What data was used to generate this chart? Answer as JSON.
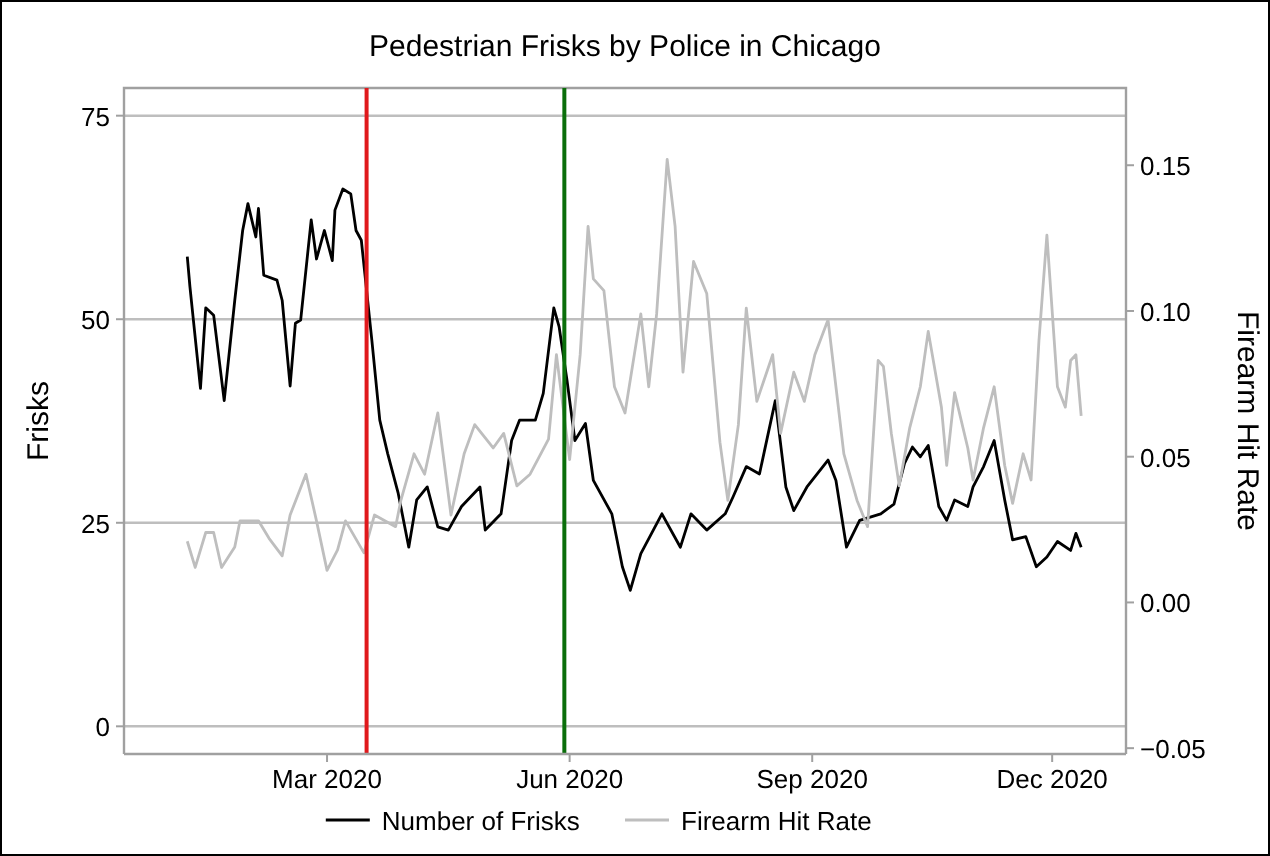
{
  "chart_data": {
    "type": "line",
    "title": "Pedestrian Frisks by Police in Chicago",
    "ylabel": "Frisks",
    "y2label": "Firearm Hit Rate",
    "xlim": [
      "2019-12-15",
      "2020-12-29"
    ],
    "xticks": [
      {
        "value": "2020-03-01",
        "label": "Mar 2020"
      },
      {
        "value": "2020-06-01",
        "label": "Jun 2020"
      },
      {
        "value": "2020-09-01",
        "label": "Sep 2020"
      },
      {
        "value": "2020-12-01",
        "label": "Dec 2020"
      }
    ],
    "ylim": [
      -3.4,
      78.4
    ],
    "yticks": [
      0,
      25,
      50,
      75
    ],
    "y2lim": [
      -0.052,
      0.1765
    ],
    "y2ticks": [
      {
        "value": -0.05,
        "label": "−0.05"
      },
      {
        "value": 0,
        "label": "0.00"
      },
      {
        "value": 0.05,
        "label": "0.05"
      },
      {
        "value": 0.1,
        "label": "0.10"
      },
      {
        "value": 0.15,
        "label": "0.15"
      }
    ],
    "grid": "y",
    "legend": "bottom",
    "marker": "none",
    "line_style": "solid",
    "ref_lines": [
      {
        "axis": "x",
        "value": "2020-03-16",
        "label": null,
        "color": "#e0191c"
      },
      {
        "axis": "x",
        "value": "2020-05-30",
        "label": null,
        "color": "#0a6e0a"
      }
    ],
    "series": [
      {
        "name": "Number of Frisks",
        "color": "#000000",
        "x": [
          "2020-01-08",
          "2020-01-09",
          "2020-01-13",
          "2020-01-15",
          "2020-01-18",
          "2020-01-22",
          "2020-01-26",
          "2020-01-29",
          "2020-01-31",
          "2020-02-03",
          "2020-02-04",
          "2020-02-06",
          "2020-02-11",
          "2020-02-13",
          "2020-02-16",
          "2020-02-18",
          "2020-02-20",
          "2020-02-24",
          "2020-02-26",
          "2020-02-29",
          "2020-03-03",
          "2020-03-04",
          "2020-03-07",
          "2020-03-10",
          "2020-03-12",
          "2020-03-14",
          "2020-03-18",
          "2020-03-21",
          "2020-03-24",
          "2020-03-28",
          "2020-04-01",
          "2020-04-04",
          "2020-04-08",
          "2020-04-12",
          "2020-04-16",
          "2020-04-21",
          "2020-04-28",
          "2020-04-30",
          "2020-05-06",
          "2020-05-10",
          "2020-05-13",
          "2020-05-19",
          "2020-05-22",
          "2020-05-26",
          "2020-05-28",
          "2020-05-31",
          "2020-06-03",
          "2020-06-07",
          "2020-06-10",
          "2020-06-17",
          "2020-06-21",
          "2020-06-24",
          "2020-06-28",
          "2020-07-06",
          "2020-07-13",
          "2020-07-17",
          "2020-07-23",
          "2020-07-30",
          "2020-08-02",
          "2020-08-07",
          "2020-08-12",
          "2020-08-18",
          "2020-08-22",
          "2020-08-25",
          "2020-08-30",
          "2020-09-07",
          "2020-09-10",
          "2020-09-14",
          "2020-09-19",
          "2020-09-27",
          "2020-10-02",
          "2020-10-06",
          "2020-10-09",
          "2020-10-12",
          "2020-10-15",
          "2020-10-19",
          "2020-10-22",
          "2020-10-25",
          "2020-10-30",
          "2020-11-01",
          "2020-11-05",
          "2020-11-09",
          "2020-11-13",
          "2020-11-16",
          "2020-11-21",
          "2020-11-25",
          "2020-11-29",
          "2020-12-03",
          "2020-12-08",
          "2020-12-10",
          "2020-12-12"
        ],
        "values": [
          57.7,
          54,
          41.5,
          51.4,
          50.5,
          40,
          52.3,
          60.9,
          64.2,
          60.1,
          63.6,
          55.4,
          54.8,
          52.3,
          41.8,
          49.5,
          49.9,
          62.2,
          57.4,
          60.9,
          57.2,
          63.4,
          66,
          65.4,
          60.9,
          59.7,
          47.4,
          37.6,
          33.5,
          28.6,
          22,
          27.8,
          29.4,
          24.5,
          24.1,
          27,
          29.4,
          24.1,
          26.1,
          35.1,
          37.6,
          37.6,
          40.9,
          51.4,
          49.1,
          42.5,
          35.1,
          37.2,
          30.2,
          26.1,
          19.6,
          16.7,
          21.2,
          26.1,
          22,
          26.1,
          24.1,
          26.1,
          28.2,
          31.9,
          31,
          40,
          29.4,
          26.5,
          29.4,
          32.7,
          30.2,
          22,
          25.3,
          26.1,
          27.3,
          32.3,
          34.3,
          33.1,
          34.5,
          27,
          25.3,
          27.8,
          27,
          29.4,
          31.9,
          35.1,
          27.8,
          22.9,
          23.3,
          19.6,
          20.8,
          22.7,
          21.6,
          23.7,
          22
        ]
      },
      {
        "name": "Firearm Hit Rate",
        "color": "#bebebe",
        "axis": "y2",
        "x": [
          "2020-01-08",
          "2020-01-11",
          "2020-01-15",
          "2020-01-18",
          "2020-01-21",
          "2020-01-26",
          "2020-01-28",
          "2020-02-04",
          "2020-02-08",
          "2020-02-13",
          "2020-02-16",
          "2020-02-22",
          "2020-02-26",
          "2020-03-01",
          "2020-03-05",
          "2020-03-08",
          "2020-03-15",
          "2020-03-19",
          "2020-03-27",
          "2020-03-29",
          "2020-04-03",
          "2020-04-07",
          "2020-04-12",
          "2020-04-17",
          "2020-04-22",
          "2020-04-26",
          "2020-05-03",
          "2020-05-07",
          "2020-05-12",
          "2020-05-17",
          "2020-05-24",
          "2020-05-27",
          "2020-06-01",
          "2020-06-05",
          "2020-06-08",
          "2020-06-10",
          "2020-06-14",
          "2020-06-18",
          "2020-06-22",
          "2020-06-28",
          "2020-07-01",
          "2020-07-04",
          "2020-07-08",
          "2020-07-11",
          "2020-07-14",
          "2020-07-18",
          "2020-07-23",
          "2020-07-28",
          "2020-07-31",
          "2020-08-04",
          "2020-08-07",
          "2020-08-11",
          "2020-08-17",
          "2020-08-20",
          "2020-08-25",
          "2020-08-29",
          "2020-09-02",
          "2020-09-07",
          "2020-09-13",
          "2020-09-18",
          "2020-09-22",
          "2020-09-26",
          "2020-09-28",
          "2020-10-01",
          "2020-10-04",
          "2020-10-08",
          "2020-10-12",
          "2020-10-15",
          "2020-10-20",
          "2020-10-22",
          "2020-10-25",
          "2020-10-30",
          "2020-11-01",
          "2020-11-05",
          "2020-11-09",
          "2020-11-13",
          "2020-11-16",
          "2020-11-20",
          "2020-11-23",
          "2020-11-26",
          "2020-11-29",
          "2020-12-03",
          "2020-12-06",
          "2020-12-08",
          "2020-12-10",
          "2020-12-12"
        ],
        "values": [
          0.021,
          0.012,
          0.024,
          0.024,
          0.012,
          0.019,
          0.028,
          0.028,
          0.022,
          0.016,
          0.03,
          0.044,
          0.028,
          0.011,
          0.018,
          0.028,
          0.017,
          0.03,
          0.026,
          0.035,
          0.051,
          0.044,
          0.065,
          0.03,
          0.051,
          0.061,
          0.053,
          0.058,
          0.04,
          0.044,
          0.056,
          0.085,
          0.049,
          0.085,
          0.129,
          0.111,
          0.107,
          0.074,
          0.065,
          0.099,
          0.074,
          0.099,
          0.152,
          0.129,
          0.079,
          0.117,
          0.106,
          0.055,
          0.035,
          0.061,
          0.101,
          0.069,
          0.085,
          0.058,
          0.079,
          0.069,
          0.085,
          0.097,
          0.051,
          0.035,
          0.026,
          0.083,
          0.081,
          0.058,
          0.04,
          0.06,
          0.074,
          0.093,
          0.067,
          0.047,
          0.072,
          0.053,
          0.042,
          0.06,
          0.074,
          0.047,
          0.034,
          0.051,
          0.042,
          0.09,
          0.126,
          0.074,
          0.067,
          0.083,
          0.085,
          0.064
        ]
      }
    ]
  }
}
